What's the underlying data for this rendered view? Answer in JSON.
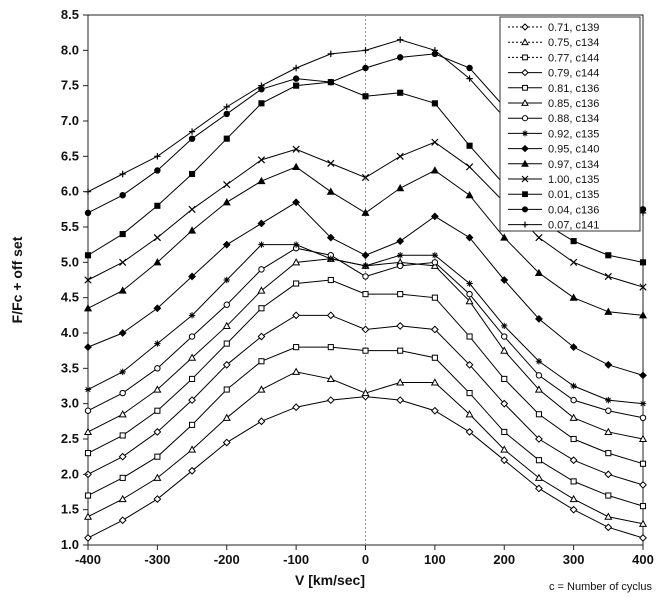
{
  "chart_data": {
    "type": "line",
    "xlabel": "V [km/sec]",
    "ylabel": "F/Fc + off set",
    "xlim": [
      -400,
      400
    ],
    "ylim": [
      1.0,
      8.5
    ],
    "xticks": [
      -400,
      -300,
      -200,
      -100,
      0,
      100,
      200,
      300,
      400
    ],
    "xtick_labels": [
      "-400",
      "-300",
      "-200",
      "-100",
      "0",
      "100",
      "200",
      "300",
      "400"
    ],
    "yticks": [
      1.0,
      1.5,
      2.0,
      2.5,
      3.0,
      3.5,
      4.0,
      4.5,
      5.0,
      5.5,
      6.0,
      6.5,
      7.0,
      7.5,
      8.0,
      8.5
    ],
    "ytick_labels": [
      "1.0",
      "1.5",
      "2.0",
      "2.5",
      "3.0",
      "3.5",
      "4.0",
      "4.5",
      "5.0",
      "5.5",
      "6.0",
      "6.5",
      "7.0",
      "7.5",
      "8.0",
      "8.5"
    ],
    "grid": false,
    "vertical_reference_line_x": 0,
    "legend_position": "top-right",
    "annotation": "c = Number of cyclus",
    "x": [
      -400,
      -350,
      -300,
      -250,
      -200,
      -150,
      -100,
      -50,
      0,
      50,
      100,
      150,
      200,
      250,
      300,
      350,
      400
    ],
    "series": [
      {
        "name": "0.71, c139",
        "marker": "diamond-open",
        "values": [
          1.1,
          1.35,
          1.65,
          2.05,
          2.45,
          2.75,
          2.95,
          3.05,
          3.1,
          3.05,
          2.9,
          2.6,
          2.2,
          1.8,
          1.5,
          1.25,
          1.1
        ]
      },
      {
        "name": "0.75, c134",
        "marker": "triangle-open",
        "values": [
          1.4,
          1.65,
          1.95,
          2.35,
          2.8,
          3.2,
          3.45,
          3.35,
          3.15,
          3.3,
          3.3,
          2.85,
          2.35,
          1.95,
          1.65,
          1.4,
          1.3
        ]
      },
      {
        "name": "0.77, c144",
        "marker": "square-open",
        "values": [
          1.7,
          1.95,
          2.25,
          2.7,
          3.2,
          3.6,
          3.8,
          3.8,
          3.75,
          3.75,
          3.65,
          3.15,
          2.6,
          2.2,
          1.9,
          1.7,
          1.55
        ]
      },
      {
        "name": "0.79, c144",
        "marker": "diamond-open",
        "values": [
          2.0,
          2.25,
          2.6,
          3.05,
          3.55,
          3.95,
          4.25,
          4.25,
          4.05,
          4.1,
          4.05,
          3.55,
          3.0,
          2.5,
          2.2,
          2.0,
          1.85
        ]
      },
      {
        "name": "0.81, c136",
        "marker": "square-open",
        "values": [
          2.3,
          2.55,
          2.9,
          3.35,
          3.85,
          4.35,
          4.7,
          4.75,
          4.55,
          4.55,
          4.5,
          3.95,
          3.35,
          2.85,
          2.5,
          2.3,
          2.15
        ]
      },
      {
        "name": "0.85, c136",
        "marker": "triangle-open",
        "values": [
          2.6,
          2.85,
          3.2,
          3.65,
          4.1,
          4.6,
          5.0,
          5.05,
          4.95,
          5.0,
          4.95,
          4.45,
          3.75,
          3.2,
          2.8,
          2.6,
          2.5
        ]
      },
      {
        "name": "0.88, c134",
        "marker": "circle-open",
        "values": [
          2.9,
          3.15,
          3.5,
          3.95,
          4.4,
          4.9,
          5.2,
          5.1,
          4.8,
          4.95,
          5.0,
          4.55,
          3.95,
          3.4,
          3.05,
          2.9,
          2.8
        ]
      },
      {
        "name": "0.92, c135",
        "marker": "star",
        "values": [
          3.2,
          3.45,
          3.85,
          4.25,
          4.75,
          5.25,
          5.25,
          5.05,
          4.95,
          5.1,
          5.1,
          4.7,
          4.1,
          3.6,
          3.25,
          3.05,
          3.0
        ]
      },
      {
        "name": "0.95, c140",
        "marker": "diamond-filled",
        "values": [
          3.8,
          4.0,
          4.35,
          4.8,
          5.25,
          5.55,
          5.85,
          5.35,
          5.1,
          5.3,
          5.65,
          5.35,
          4.75,
          4.2,
          3.8,
          3.55,
          3.4
        ]
      },
      {
        "name": "0.97, c134",
        "marker": "triangle-filled",
        "values": [
          4.35,
          4.6,
          5.0,
          5.45,
          5.85,
          6.15,
          6.35,
          6.0,
          5.7,
          6.05,
          6.3,
          5.95,
          5.35,
          4.85,
          4.5,
          4.3,
          4.25
        ]
      },
      {
        "name": "1.00, c135",
        "marker": "x",
        "values": [
          4.75,
          5.0,
          5.35,
          5.75,
          6.1,
          6.45,
          6.6,
          6.4,
          6.2,
          6.5,
          6.7,
          6.35,
          5.85,
          5.35,
          5.0,
          4.8,
          4.65
        ]
      },
      {
        "name": "0.01, c135",
        "marker": "square-filled",
        "values": [
          5.1,
          5.4,
          5.8,
          6.25,
          6.75,
          7.25,
          7.5,
          7.55,
          7.35,
          7.4,
          7.25,
          6.65,
          6.1,
          5.6,
          5.3,
          5.1,
          5.0
        ]
      },
      {
        "name": "0.04, c136",
        "marker": "circle-filled",
        "values": [
          5.7,
          5.95,
          6.3,
          6.75,
          7.1,
          7.45,
          7.6,
          7.55,
          7.75,
          7.9,
          7.95,
          7.75,
          7.2,
          6.65,
          6.2,
          5.9,
          5.75
        ]
      },
      {
        "name": "0.07, c141",
        "marker": "plus",
        "values": [
          6.0,
          6.25,
          6.5,
          6.85,
          7.2,
          7.5,
          7.75,
          7.95,
          8.0,
          8.15,
          8.0,
          7.6,
          7.05,
          6.5,
          6.15,
          5.85,
          5.7
        ]
      }
    ]
  }
}
